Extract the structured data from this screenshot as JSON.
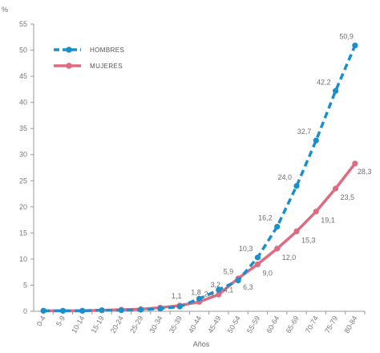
{
  "chart_data": {
    "type": "line",
    "title": "",
    "xlabel": "Años",
    "ylabel": "%",
    "ylim": [
      0,
      55
    ],
    "yticks": [
      0,
      5,
      10,
      15,
      20,
      25,
      30,
      35,
      40,
      45,
      50,
      55
    ],
    "grid": false,
    "legend_position": "top-left",
    "categories": [
      "0-4",
      "5-9",
      "10-14",
      "15-19",
      "20-24",
      "25-29",
      "30-34",
      "35-39",
      "40-44",
      "45-49",
      "50-54",
      "55-59",
      "60-64",
      "65-69",
      "70-74",
      "75-79",
      "80-84"
    ],
    "series": [
      {
        "name": "HOMBRES",
        "color": "#1a8fcc",
        "style": "dashed",
        "values": [
          0.1,
          0.1,
          0.1,
          0.2,
          0.2,
          0.3,
          0.5,
          0.9,
          2.4,
          4.1,
          5.9,
          10.3,
          16.2,
          24.0,
          32.7,
          42.2,
          50.9
        ],
        "labels": [
          "",
          "",
          "",
          "",
          "",
          "",
          "",
          "",
          "2,4",
          "4,1",
          "5,9",
          "10,3",
          "16,2",
          "24,0",
          "32,7",
          "42,2",
          "50,9"
        ]
      },
      {
        "name": "MUJERES",
        "color": "#e06a7f",
        "style": "solid",
        "values": [
          0.1,
          0.1,
          0.1,
          0.2,
          0.3,
          0.4,
          0.7,
          1.1,
          1.8,
          3.2,
          6.3,
          9.0,
          12.0,
          15.3,
          19.1,
          23.5,
          28.3
        ],
        "labels": [
          "",
          "",
          "",
          "",
          "",
          "",
          "",
          "1,1",
          "1,8",
          "3,2",
          "6,3",
          "9,0",
          "12,0",
          "15,3",
          "19,1",
          "23,5",
          "28,3"
        ]
      }
    ]
  }
}
